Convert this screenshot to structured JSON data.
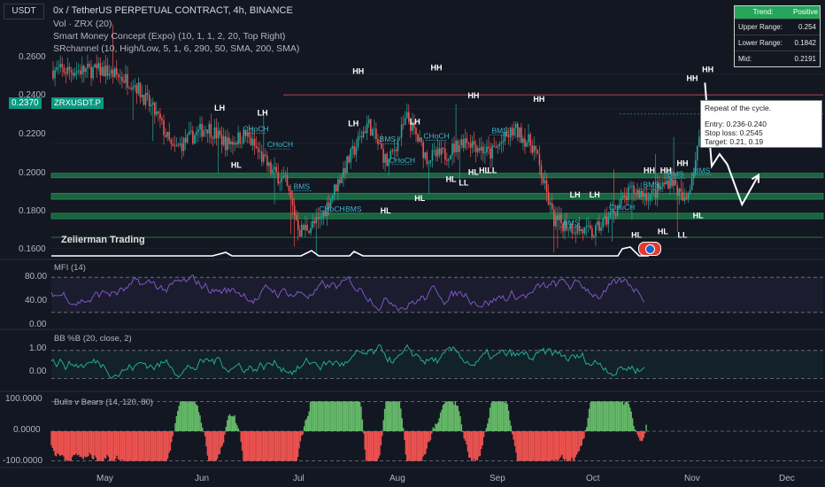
{
  "header": {
    "currency": "USDT",
    "title": "0x / TetherUS PERPETUAL CONTRACT, 4h, BINANCE",
    "indicators": [
      "Vol · ZRX (20)",
      "Smart Money Concept (Expo) (10, 1, 1, 2, 20, Top Right)",
      "SRchannel (10, High/Low, 5, 1, 6, 290, 50, SMA, 200, SMA)"
    ]
  },
  "price_tag": "0.2370",
  "symbol_tag": "ZRXUSDT.P",
  "watermark": "Zeiierman Trading",
  "trend_table": {
    "header_left": "Trend:",
    "header_right": "Positive",
    "rows": [
      {
        "label": "Upper Range:",
        "value": "0.254"
      },
      {
        "label": "Lower Range:",
        "value": "0.1842"
      },
      {
        "label": "Mid:",
        "value": "0.2191"
      }
    ]
  },
  "note": {
    "line1": "Repeat of the cycle.",
    "line2": "Entry: 0.236-0.240",
    "line3": "Stop loss: 0.2545",
    "line4": "Target: 0.21, 0.19"
  },
  "panes": {
    "mfi_label": "MFI (14)",
    "bb_label": "BB %B (20, close, 2)",
    "bulls_label": "Bulls v Bears (14, 120, 80)"
  },
  "colors": {
    "background": "#131722",
    "up": "#26a69a",
    "down": "#ef5350",
    "zone": "#1b7f4b",
    "mfi": "#7e57c2",
    "bb": "#22ab94",
    "bulls": "#66bb6a",
    "bears": "#f05350"
  },
  "chart_data": {
    "type": "candlestick",
    "title": "0x / TetherUS PERPETUAL CONTRACT, 4h, BINANCE",
    "x_ticks": [
      "May",
      "Jun",
      "Jul",
      "Aug",
      "Sep",
      "Oct",
      "Nov",
      "Dec"
    ],
    "y_ticks": [
      "0.2600",
      "0.2400",
      "0.2200",
      "0.2000",
      "0.1800",
      "0.1600"
    ],
    "ylim": [
      0.155,
      0.274
    ],
    "last_price": 0.237,
    "price_path": [
      {
        "t": 0.0,
        "p": 0.262
      },
      {
        "t": 0.3,
        "p": 0.255
      },
      {
        "t": 0.55,
        "p": 0.235
      },
      {
        "t": 0.7,
        "p": 0.216
      },
      {
        "t": 0.85,
        "p": 0.222
      },
      {
        "t": 1.05,
        "p": 0.23
      },
      {
        "t": 1.25,
        "p": 0.22
      },
      {
        "t": 1.45,
        "p": 0.225
      },
      {
        "t": 1.7,
        "p": 0.205
      },
      {
        "t": 1.85,
        "p": 0.198
      },
      {
        "t": 2.0,
        "p": 0.17
      },
      {
        "t": 2.2,
        "p": 0.175
      },
      {
        "t": 2.45,
        "p": 0.205
      },
      {
        "t": 2.7,
        "p": 0.232
      },
      {
        "t": 2.9,
        "p": 0.208
      },
      {
        "t": 3.1,
        "p": 0.235
      },
      {
        "t": 3.3,
        "p": 0.212
      },
      {
        "t": 3.5,
        "p": 0.214
      },
      {
        "t": 3.7,
        "p": 0.223
      },
      {
        "t": 3.95,
        "p": 0.214
      },
      {
        "t": 4.2,
        "p": 0.228
      },
      {
        "t": 4.4,
        "p": 0.218
      },
      {
        "t": 4.6,
        "p": 0.176
      },
      {
        "t": 4.8,
        "p": 0.172
      },
      {
        "t": 5.0,
        "p": 0.168
      },
      {
        "t": 5.2,
        "p": 0.18
      },
      {
        "t": 5.4,
        "p": 0.193
      },
      {
        "t": 5.6,
        "p": 0.19
      },
      {
        "t": 5.8,
        "p": 0.2
      },
      {
        "t": 5.95,
        "p": 0.185
      },
      {
        "t": 6.05,
        "p": 0.21
      },
      {
        "t": 6.15,
        "p": 0.237
      }
    ],
    "projection": [
      {
        "t": 6.15,
        "p": 0.255
      },
      {
        "t": 6.22,
        "p": 0.207
      },
      {
        "t": 6.3,
        "p": 0.214
      },
      {
        "t": 6.38,
        "p": 0.208
      },
      {
        "t": 6.53,
        "p": 0.185
      },
      {
        "t": 6.7,
        "p": 0.202
      }
    ],
    "support_zones": [
      {
        "low": 0.2005,
        "high": 0.203
      },
      {
        "low": 0.188,
        "high": 0.1915
      },
      {
        "low": 0.1768,
        "high": 0.18
      }
    ],
    "resistance_line": 0.248,
    "annotations": [
      {
        "text": "HH",
        "t": 2.6,
        "p": 0.26
      },
      {
        "text": "HH",
        "t": 3.4,
        "p": 0.262
      },
      {
        "text": "HH",
        "t": 3.78,
        "p": 0.246
      },
      {
        "text": "HH",
        "t": 4.45,
        "p": 0.244
      },
      {
        "text": "HH",
        "t": 6.02,
        "p": 0.256
      },
      {
        "text": "HH",
        "t": 6.18,
        "p": 0.261
      },
      {
        "text": "HH",
        "t": 5.58,
        "p": 0.203
      },
      {
        "text": "HH",
        "t": 5.75,
        "p": 0.203
      },
      {
        "text": "HH",
        "t": 5.92,
        "p": 0.207
      },
      {
        "text": "LH",
        "t": 1.18,
        "p": 0.239
      },
      {
        "text": "LH",
        "t": 1.62,
        "p": 0.236
      },
      {
        "text": "LH",
        "t": 2.55,
        "p": 0.23
      },
      {
        "text": "LH",
        "t": 3.18,
        "p": 0.231
      },
      {
        "text": "LH",
        "t": 4.82,
        "p": 0.189
      },
      {
        "text": "LH",
        "t": 5.02,
        "p": 0.189
      },
      {
        "text": "HL",
        "t": 1.35,
        "p": 0.206
      },
      {
        "text": "HL",
        "t": 2.88,
        "p": 0.18
      },
      {
        "text": "HL",
        "t": 3.23,
        "p": 0.187
      },
      {
        "text": "HL",
        "t": 3.55,
        "p": 0.198
      },
      {
        "text": "HL",
        "t": 3.78,
        "p": 0.202
      },
      {
        "text": "HL",
        "t": 3.89,
        "p": 0.203
      },
      {
        "text": "HL",
        "t": 5.45,
        "p": 0.166
      },
      {
        "text": "HL",
        "t": 5.72,
        "p": 0.168
      },
      {
        "text": "HL",
        "t": 6.08,
        "p": 0.177
      },
      {
        "text": "LL",
        "t": 3.68,
        "p": 0.196
      },
      {
        "text": "LL",
        "t": 3.97,
        "p": 0.203
      },
      {
        "text": "LL",
        "t": 5.92,
        "p": 0.166
      },
      {
        "text": "BMS",
        "t": 2.02,
        "p": 0.194
      },
      {
        "text": "BMS",
        "t": 2.55,
        "p": 0.181
      },
      {
        "text": "BMS",
        "t": 2.9,
        "p": 0.221
      },
      {
        "text": "BMS",
        "t": 4.05,
        "p": 0.226
      },
      {
        "text": "BMS",
        "t": 4.78,
        "p": 0.173
      },
      {
        "text": "BMS",
        "t": 5.6,
        "p": 0.195
      },
      {
        "text": "BMS",
        "t": 5.85,
        "p": 0.201
      },
      {
        "text": "BMS",
        "t": 6.12,
        "p": 0.203
      },
      {
        "text": "CHoCH",
        "t": 1.55,
        "p": 0.227
      },
      {
        "text": "CHoCH",
        "t": 1.8,
        "p": 0.218
      },
      {
        "text": "CHoCH",
        "t": 3.4,
        "p": 0.223
      },
      {
        "text": "CHoCH",
        "t": 5.3,
        "p": 0.182
      },
      {
        "text": "CHoCH",
        "t": 2.33,
        "p": 0.181
      },
      {
        "text": "CHoCH",
        "t": 3.05,
        "p": 0.209
      }
    ],
    "mfi": {
      "ylim": [
        0,
        100
      ],
      "ticks": [
        "80.00",
        "40.00",
        "0.00"
      ],
      "bands": [
        80,
        20
      ]
    },
    "bb_pctb": {
      "ylim": [
        -0.3,
        1.5
      ],
      "ticks": [
        "1.00",
        "0.00"
      ]
    },
    "bulls_bears": {
      "ylim": [
        -110,
        110
      ],
      "ticks": [
        "100.0000",
        "0.0000",
        "-100.0000"
      ]
    }
  }
}
